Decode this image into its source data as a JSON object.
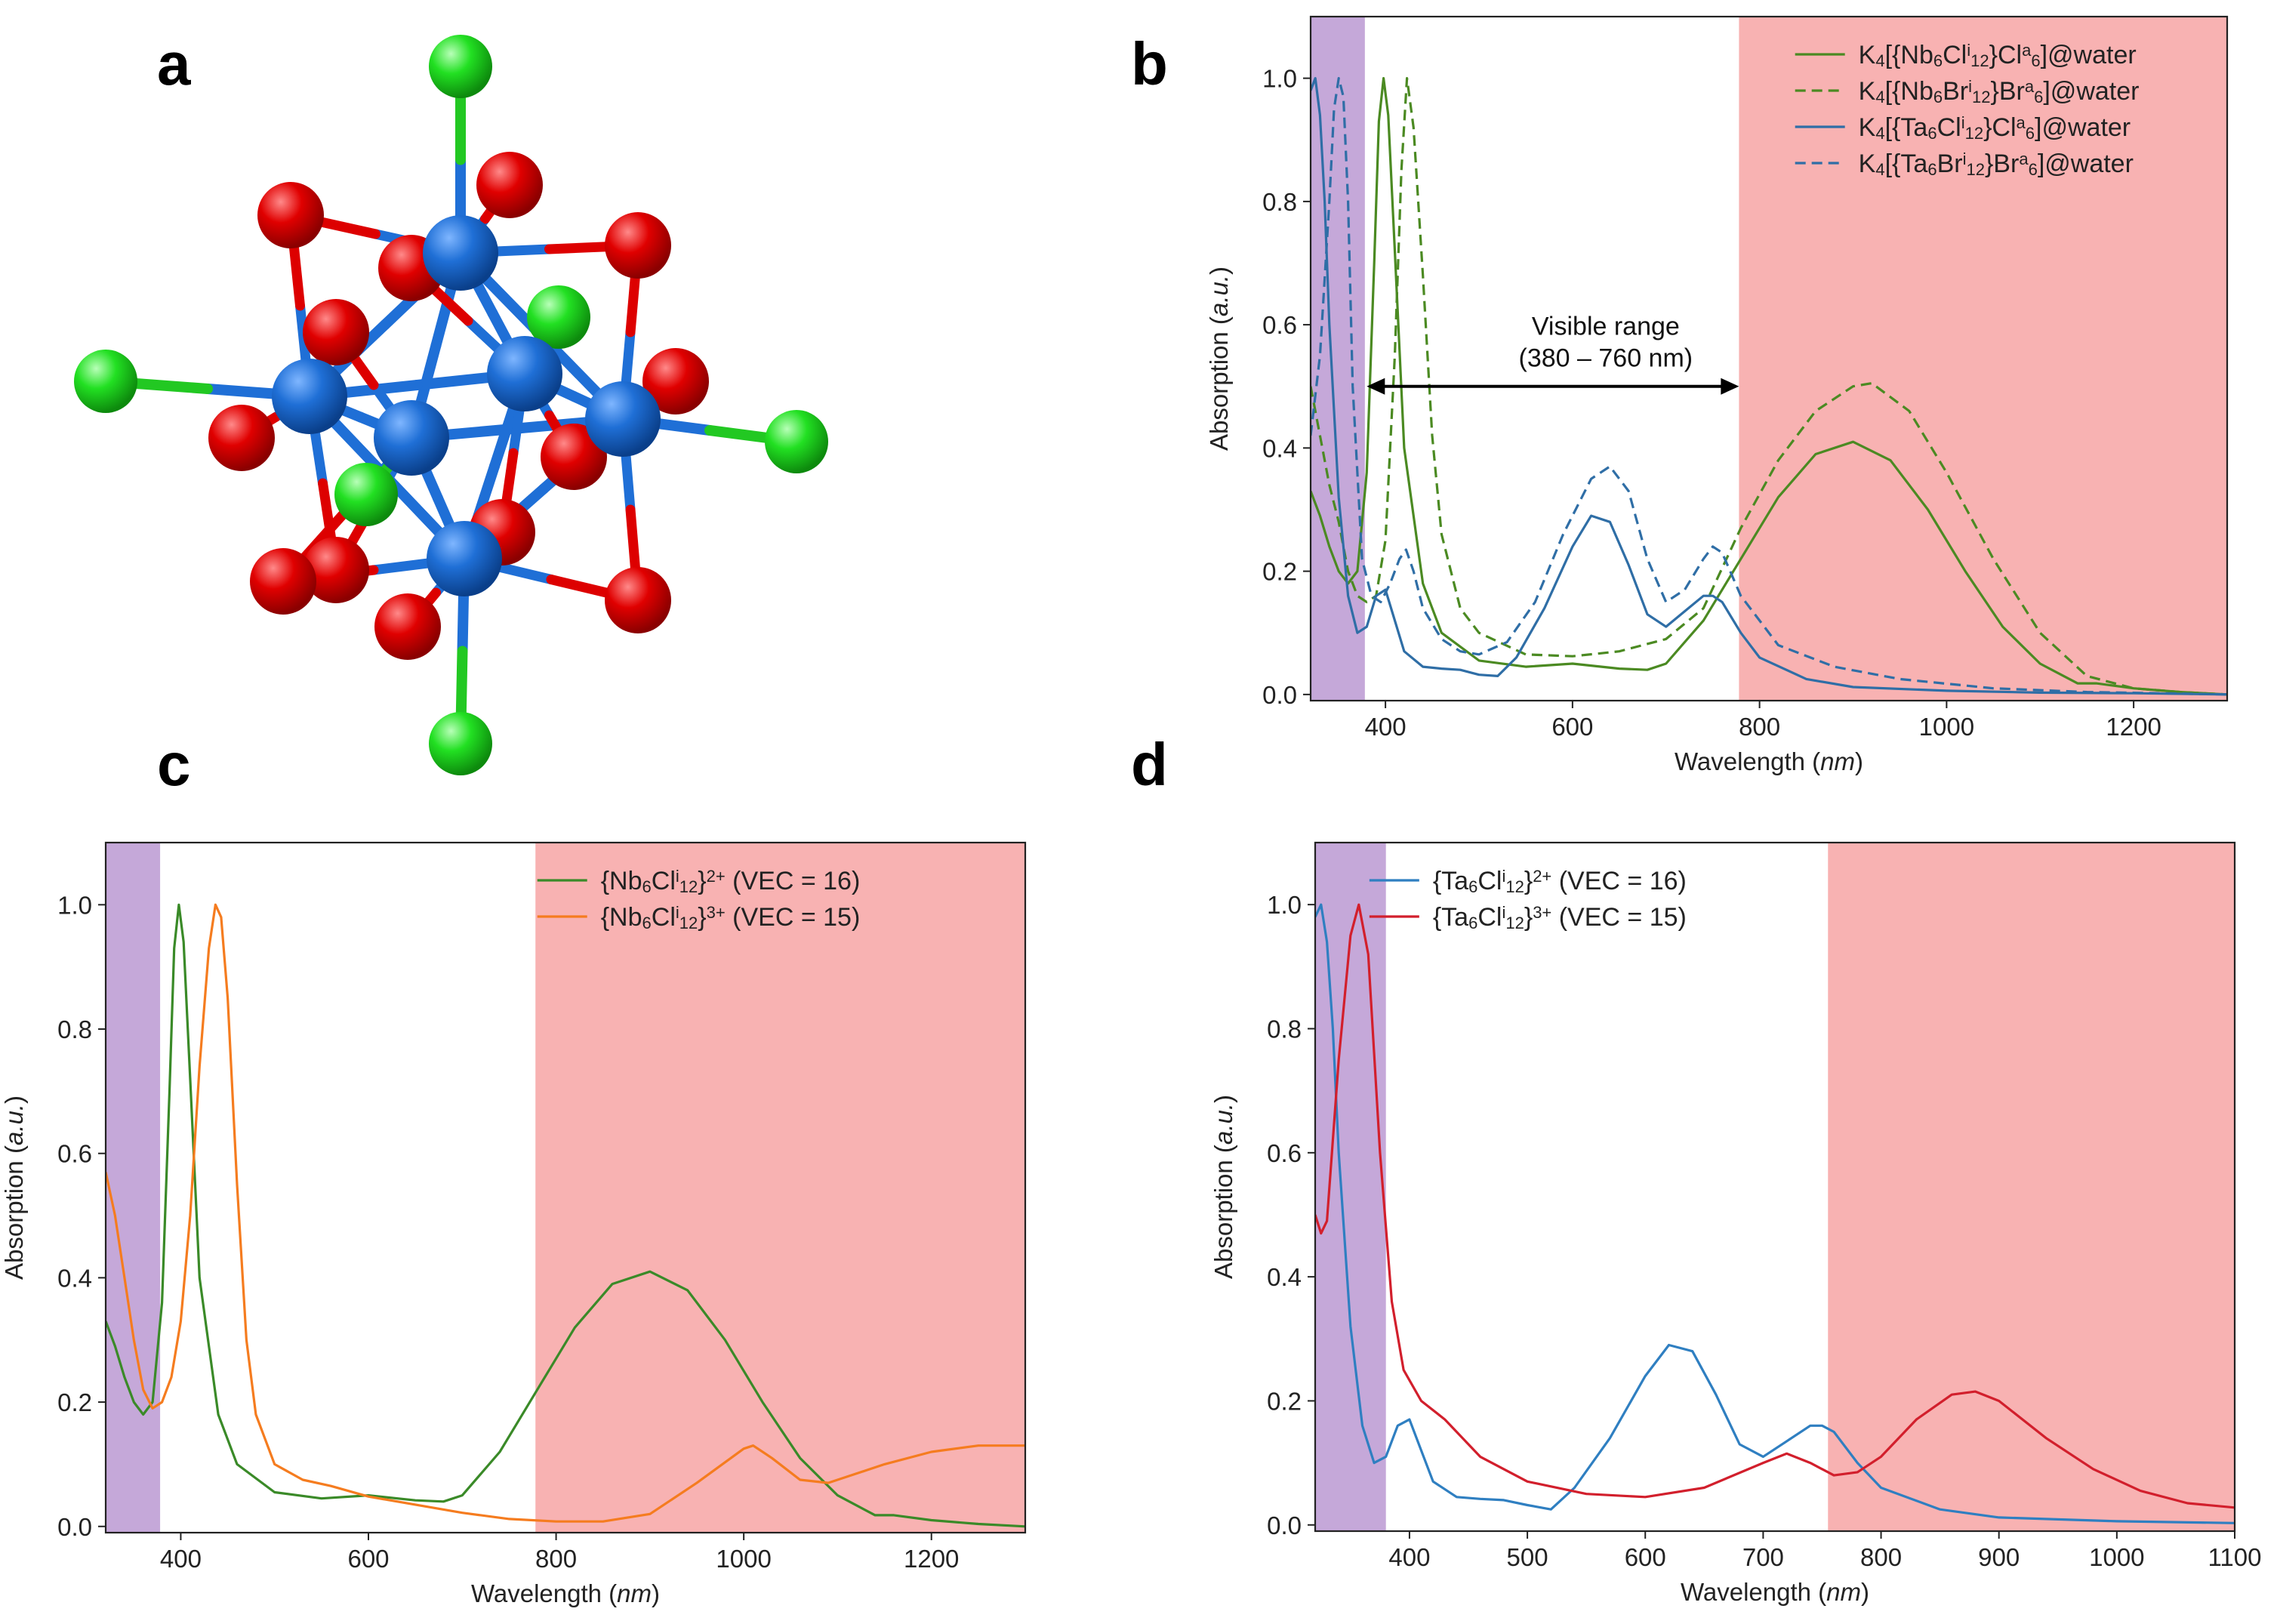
{
  "panel_labels": {
    "a": "a",
    "b": "b",
    "c": "c",
    "d": "d"
  },
  "structure": {
    "description_colors": {
      "metal": "#1f6fd6",
      "inner_halide": "#dd0000",
      "apical_halide": "#22dd22"
    }
  },
  "chart_data": [
    {
      "id": "b",
      "type": "line",
      "title": "",
      "xlabel": "Wavelength (nm)",
      "xlabel_main": "Wavelength (",
      "xlabel_unit": "nm",
      "xlabel_close": ")",
      "ylabel_main": "Absorption (",
      "ylabel_unit": "a.u.",
      "ylabel_close": ")",
      "xlim": [
        320,
        1300
      ],
      "ylim": [
        -0.01,
        1.1
      ],
      "xticks": [
        400,
        600,
        800,
        1000,
        1200
      ],
      "yticks": [
        0.0,
        0.2,
        0.4,
        0.6,
        0.8,
        1.0
      ],
      "xtick_labels": [
        "400",
        "600",
        "800",
        "1000",
        "1200"
      ],
      "ytick_labels": [
        "0.0",
        "0.2",
        "0.4",
        "0.6",
        "0.8",
        "1.0"
      ],
      "bands": [
        {
          "from": 320,
          "to": 378,
          "color": "#c5a8d9"
        },
        {
          "from": 778,
          "to": 1300,
          "color": "#f8b2b2"
        }
      ],
      "annotation": {
        "line1": "Visible range",
        "line2": "(380 – 760 nm)",
        "arrow_from": 380,
        "arrow_to": 778,
        "arrow_y": 0.5
      },
      "legend": [
        {
          "prefix": "K",
          "s1": "4",
          "t1": "[{Nb",
          "s2": "6",
          "t2": "Cl",
          "sup1": "i",
          "s3": "12",
          "t3": "}Cl",
          "sup2": "a",
          "s4": "6",
          "t4": "]@water",
          "color": "#4b8a22",
          "dash": ""
        },
        {
          "prefix": "K",
          "s1": "4",
          "t1": "[{Nb",
          "s2": "6",
          "t2": "Br",
          "sup1": "i",
          "s3": "12",
          "t3": "}Br",
          "sup2": "a",
          "s4": "6",
          "t4": "]@water",
          "color": "#4b8a22",
          "dash": "14,8"
        },
        {
          "prefix": "K",
          "s1": "4",
          "t1": "[{Ta",
          "s2": "6",
          "t2": "Cl",
          "sup1": "i",
          "s3": "12",
          "t3": "}Cl",
          "sup2": "a",
          "s4": "6",
          "t4": "]@water",
          "color": "#2f6ea6",
          "dash": ""
        },
        {
          "prefix": "K",
          "s1": "4",
          "t1": "[{Ta",
          "s2": "6",
          "t2": "Br",
          "sup1": "i",
          "s3": "12",
          "t3": "}Br",
          "sup2": "a",
          "s4": "6",
          "t4": "]@water",
          "color": "#2f6ea6",
          "dash": "14,8"
        }
      ],
      "series": [
        {
          "name": "K4[{Nb6Cli12}Cla6]@water",
          "color": "#4b8a22",
          "dash": "",
          "x": [
            320,
            330,
            340,
            350,
            360,
            370,
            380,
            388,
            393,
            398,
            403,
            410,
            420,
            440,
            460,
            500,
            550,
            600,
            650,
            680,
            700,
            740,
            780,
            820,
            860,
            900,
            940,
            980,
            1020,
            1060,
            1100,
            1140,
            1160,
            1200,
            1250,
            1300
          ],
          "y": [
            0.33,
            0.29,
            0.24,
            0.2,
            0.18,
            0.2,
            0.36,
            0.7,
            0.93,
            1.0,
            0.94,
            0.72,
            0.4,
            0.18,
            0.1,
            0.055,
            0.045,
            0.05,
            0.042,
            0.04,
            0.05,
            0.12,
            0.22,
            0.32,
            0.39,
            0.41,
            0.38,
            0.3,
            0.2,
            0.11,
            0.05,
            0.018,
            0.018,
            0.01,
            0.004,
            0.0
          ]
        },
        {
          "name": "K4[{Nb6Bri12}Bra6]@water",
          "color": "#4b8a22",
          "dash": "14,8",
          "x": [
            320,
            330,
            340,
            350,
            360,
            370,
            380,
            390,
            400,
            410,
            417,
            423,
            430,
            440,
            450,
            460,
            480,
            500,
            550,
            600,
            650,
            700,
            740,
            780,
            820,
            860,
            900,
            920,
            960,
            1000,
            1050,
            1100,
            1150,
            1200,
            1250,
            1300
          ],
          "y": [
            0.5,
            0.42,
            0.34,
            0.28,
            0.2,
            0.16,
            0.15,
            0.16,
            0.25,
            0.55,
            0.85,
            1.0,
            0.92,
            0.68,
            0.42,
            0.26,
            0.14,
            0.1,
            0.065,
            0.062,
            0.07,
            0.09,
            0.14,
            0.27,
            0.38,
            0.46,
            0.5,
            0.505,
            0.46,
            0.36,
            0.22,
            0.1,
            0.03,
            0.01,
            0.004,
            0.0
          ]
        },
        {
          "name": "K4[{Ta6Cli12}Cla6]@water",
          "color": "#2f6ea6",
          "dash": "",
          "x": [
            320,
            325,
            330,
            335,
            340,
            350,
            360,
            370,
            380,
            390,
            400,
            410,
            420,
            440,
            460,
            480,
            500,
            520,
            540,
            570,
            600,
            620,
            640,
            660,
            680,
            700,
            720,
            740,
            750,
            760,
            780,
            800,
            850,
            900,
            1000,
            1100,
            1200,
            1300
          ],
          "y": [
            0.98,
            1.0,
            0.94,
            0.8,
            0.6,
            0.32,
            0.16,
            0.1,
            0.11,
            0.16,
            0.17,
            0.12,
            0.07,
            0.045,
            0.042,
            0.04,
            0.032,
            0.03,
            0.06,
            0.14,
            0.24,
            0.29,
            0.28,
            0.21,
            0.13,
            0.11,
            0.135,
            0.16,
            0.16,
            0.15,
            0.1,
            0.06,
            0.025,
            0.012,
            0.006,
            0.003,
            0.002,
            0.0
          ]
        },
        {
          "name": "K4[{Ta6Bri12}Bra6]@water",
          "color": "#2f6ea6",
          "dash": "14,8",
          "x": [
            320,
            330,
            340,
            345,
            350,
            355,
            360,
            365,
            375,
            385,
            395,
            405,
            415,
            422,
            430,
            440,
            460,
            480,
            500,
            530,
            560,
            590,
            620,
            640,
            660,
            680,
            700,
            720,
            740,
            750,
            760,
            780,
            820,
            880,
            950,
            1050,
            1150,
            1300
          ],
          "y": [
            0.42,
            0.55,
            0.8,
            0.95,
            1.0,
            0.97,
            0.8,
            0.5,
            0.22,
            0.16,
            0.15,
            0.18,
            0.22,
            0.235,
            0.2,
            0.14,
            0.09,
            0.07,
            0.065,
            0.085,
            0.15,
            0.26,
            0.35,
            0.37,
            0.33,
            0.22,
            0.15,
            0.17,
            0.22,
            0.24,
            0.23,
            0.16,
            0.08,
            0.045,
            0.025,
            0.01,
            0.004,
            0.0
          ]
        }
      ]
    },
    {
      "id": "c",
      "type": "line",
      "xlabel_main": "Wavelength (",
      "xlabel_unit": "nm",
      "xlabel_close": ")",
      "ylabel_main": "Absorption (",
      "ylabel_unit": "a.u.",
      "ylabel_close": ")",
      "xlim": [
        320,
        1300
      ],
      "ylim": [
        -0.01,
        1.1
      ],
      "xticks": [
        400,
        600,
        800,
        1000,
        1200
      ],
      "yticks": [
        0.0,
        0.2,
        0.4,
        0.6,
        0.8,
        1.0
      ],
      "xtick_labels": [
        "400",
        "600",
        "800",
        "1000",
        "1200"
      ],
      "ytick_labels": [
        "0.0",
        "0.2",
        "0.4",
        "0.6",
        "0.8",
        "1.0"
      ],
      "bands": [
        {
          "from": 320,
          "to": 378,
          "color": "#c5a8d9"
        },
        {
          "from": 778,
          "to": 1300,
          "color": "#f8b2b2"
        }
      ],
      "legend": [
        {
          "t1": "{Nb",
          "s1": "6",
          "t2": "Cl",
          "sup1": "i",
          "s2": "12",
          "t3": "}",
          "sup2": "2+",
          "t4": " (VEC = 16)",
          "color": "#3a8a28",
          "dash": ""
        },
        {
          "t1": "{Nb",
          "s1": "6",
          "t2": "Cl",
          "sup1": "i",
          "s2": "12",
          "t3": "}",
          "sup2": "3+",
          "t4": " (VEC = 15)",
          "color": "#f57c1f",
          "dash": ""
        }
      ],
      "series": [
        {
          "name": "{Nb6Cli12}2+ (VEC = 16)",
          "color": "#3a8a28",
          "dash": "",
          "x": [
            320,
            330,
            340,
            350,
            360,
            370,
            380,
            388,
            393,
            398,
            403,
            410,
            420,
            440,
            460,
            500,
            550,
            600,
            650,
            680,
            700,
            740,
            780,
            820,
            860,
            900,
            940,
            980,
            1020,
            1060,
            1100,
            1140,
            1160,
            1200,
            1250,
            1300
          ],
          "y": [
            0.33,
            0.29,
            0.24,
            0.2,
            0.18,
            0.2,
            0.36,
            0.7,
            0.93,
            1.0,
            0.94,
            0.72,
            0.4,
            0.18,
            0.1,
            0.055,
            0.045,
            0.05,
            0.042,
            0.04,
            0.05,
            0.12,
            0.22,
            0.32,
            0.39,
            0.41,
            0.38,
            0.3,
            0.2,
            0.11,
            0.05,
            0.018,
            0.018,
            0.01,
            0.004,
            0.0
          ]
        },
        {
          "name": "{Nb6Cli12}3+ (VEC = 15)",
          "color": "#f57c1f",
          "dash": "",
          "x": [
            320,
            330,
            340,
            350,
            360,
            370,
            380,
            390,
            400,
            410,
            420,
            430,
            437,
            443,
            450,
            460,
            470,
            480,
            500,
            530,
            560,
            600,
            650,
            700,
            750,
            800,
            850,
            900,
            950,
            1000,
            1010,
            1030,
            1060,
            1090,
            1110,
            1150,
            1200,
            1250,
            1300
          ],
          "y": [
            0.57,
            0.5,
            0.4,
            0.3,
            0.22,
            0.19,
            0.2,
            0.24,
            0.33,
            0.5,
            0.74,
            0.93,
            1.0,
            0.98,
            0.85,
            0.55,
            0.3,
            0.18,
            0.1,
            0.075,
            0.065,
            0.048,
            0.035,
            0.022,
            0.012,
            0.008,
            0.008,
            0.02,
            0.07,
            0.125,
            0.13,
            0.11,
            0.075,
            0.07,
            0.08,
            0.1,
            0.12,
            0.13,
            0.13
          ]
        }
      ]
    },
    {
      "id": "d",
      "type": "line",
      "xlabel_main": "Wavelength (",
      "xlabel_unit": "nm",
      "xlabel_close": ")",
      "ylabel_main": "Absorption (",
      "ylabel_unit": "a.u.",
      "ylabel_close": ")",
      "xlim": [
        320,
        1100
      ],
      "ylim": [
        -0.01,
        1.1
      ],
      "xticks": [
        400,
        500,
        600,
        700,
        800,
        900,
        1000,
        1100
      ],
      "yticks": [
        0.0,
        0.2,
        0.4,
        0.6,
        0.8,
        1.0
      ],
      "xtick_labels": [
        "400",
        "500",
        "600",
        "700",
        "800",
        "900",
        "1000",
        "1100"
      ],
      "ytick_labels": [
        "0.0",
        "0.2",
        "0.4",
        "0.6",
        "0.8",
        "1.0"
      ],
      "bands": [
        {
          "from": 320,
          "to": 380,
          "color": "#c5a8d9"
        },
        {
          "from": 755,
          "to": 1100,
          "color": "#f8b2b2"
        }
      ],
      "legend": [
        {
          "t1": "{Ta",
          "s1": "6",
          "t2": "Cl",
          "sup1": "i",
          "s2": "12",
          "t3": "}",
          "sup2": "2+",
          "t4": " (VEC = 16)",
          "color": "#2f7fc1",
          "dash": ""
        },
        {
          "t1": "{Ta",
          "s1": "6",
          "t2": "Cl",
          "sup1": "i",
          "s2": "12",
          "t3": "}",
          "sup2": "3+",
          "t4": " (VEC = 15)",
          "color": "#d21f2c",
          "dash": ""
        }
      ],
      "series": [
        {
          "name": "{Ta6Cli12}2+ (VEC = 16)",
          "color": "#2f7fc1",
          "dash": "",
          "x": [
            320,
            325,
            330,
            335,
            340,
            350,
            360,
            370,
            380,
            390,
            400,
            410,
            420,
            440,
            460,
            480,
            500,
            520,
            540,
            570,
            600,
            620,
            640,
            660,
            680,
            700,
            720,
            740,
            750,
            760,
            780,
            800,
            850,
            900,
            1000,
            1100
          ],
          "y": [
            0.98,
            1.0,
            0.94,
            0.8,
            0.6,
            0.32,
            0.16,
            0.1,
            0.11,
            0.16,
            0.17,
            0.12,
            0.07,
            0.045,
            0.042,
            0.04,
            0.032,
            0.025,
            0.06,
            0.14,
            0.24,
            0.29,
            0.28,
            0.21,
            0.13,
            0.11,
            0.135,
            0.16,
            0.16,
            0.15,
            0.1,
            0.06,
            0.025,
            0.012,
            0.006,
            0.003
          ]
        },
        {
          "name": "{Ta6Cli12}3+ (VEC = 15)",
          "color": "#d21f2c",
          "dash": "",
          "x": [
            320,
            325,
            330,
            340,
            350,
            357,
            365,
            375,
            385,
            395,
            410,
            430,
            460,
            500,
            550,
            600,
            650,
            700,
            720,
            740,
            760,
            780,
            800,
            830,
            860,
            880,
            900,
            940,
            980,
            1020,
            1060,
            1100
          ],
          "y": [
            0.5,
            0.47,
            0.49,
            0.75,
            0.95,
            1.0,
            0.92,
            0.6,
            0.36,
            0.25,
            0.2,
            0.17,
            0.11,
            0.07,
            0.05,
            0.045,
            0.06,
            0.1,
            0.115,
            0.1,
            0.08,
            0.085,
            0.11,
            0.17,
            0.21,
            0.215,
            0.2,
            0.14,
            0.09,
            0.055,
            0.035,
            0.028
          ]
        }
      ]
    }
  ]
}
